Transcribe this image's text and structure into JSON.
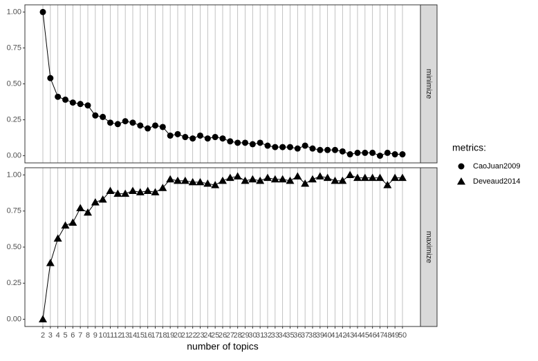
{
  "chart_data": {
    "type": "line",
    "x": [
      2,
      3,
      4,
      5,
      6,
      7,
      8,
      9,
      10,
      11,
      12,
      13,
      14,
      15,
      16,
      17,
      18,
      19,
      20,
      21,
      22,
      23,
      24,
      25,
      26,
      27,
      28,
      29,
      30,
      31,
      32,
      33,
      34,
      35,
      36,
      37,
      38,
      39,
      40,
      41,
      42,
      43,
      44,
      45,
      46,
      47,
      48,
      49,
      50
    ],
    "xlabel": "number of topics",
    "xlim": [
      -0.4,
      52.4
    ],
    "ylim": [
      -0.05,
      1.05
    ],
    "yticks": [
      {
        "value": 0,
        "label": "0.00"
      },
      {
        "value": 0.25,
        "label": "0.25"
      },
      {
        "value": 0.5,
        "label": "0.50"
      },
      {
        "value": 0.75,
        "label": "0.75"
      },
      {
        "value": 1,
        "label": "1.00"
      }
    ],
    "grid": "vertical",
    "legend_title": "metrics:",
    "legend_position": "right",
    "facets": [
      {
        "label": "minimize",
        "series": [
          {
            "name": "CaoJuan2009",
            "color": "#000000",
            "marker": "circle",
            "values": [
              1.0,
              0.54,
              0.41,
              0.39,
              0.37,
              0.36,
              0.35,
              0.28,
              0.27,
              0.23,
              0.22,
              0.24,
              0.23,
              0.21,
              0.19,
              0.21,
              0.2,
              0.14,
              0.15,
              0.13,
              0.12,
              0.14,
              0.12,
              0.13,
              0.12,
              0.1,
              0.09,
              0.09,
              0.08,
              0.09,
              0.07,
              0.06,
              0.06,
              0.06,
              0.05,
              0.07,
              0.05,
              0.04,
              0.04,
              0.04,
              0.03,
              0.01,
              0.02,
              0.02,
              0.02,
              0.0,
              0.02,
              0.01,
              0.01
            ]
          }
        ]
      },
      {
        "label": "maximize",
        "series": [
          {
            "name": "Deveaud2014",
            "color": "#000000",
            "marker": "triangle",
            "values": [
              0.0,
              0.39,
              0.56,
              0.65,
              0.67,
              0.77,
              0.74,
              0.81,
              0.83,
              0.89,
              0.87,
              0.87,
              0.89,
              0.88,
              0.89,
              0.88,
              0.91,
              0.97,
              0.96,
              0.96,
              0.95,
              0.95,
              0.94,
              0.93,
              0.96,
              0.98,
              0.99,
              0.96,
              0.97,
              0.96,
              0.98,
              0.97,
              0.97,
              0.96,
              0.99,
              0.94,
              0.97,
              0.99,
              0.98,
              0.96,
              0.96,
              1.0,
              0.98,
              0.98,
              0.98,
              0.98,
              0.93,
              0.98,
              0.98
            ]
          }
        ]
      }
    ]
  }
}
